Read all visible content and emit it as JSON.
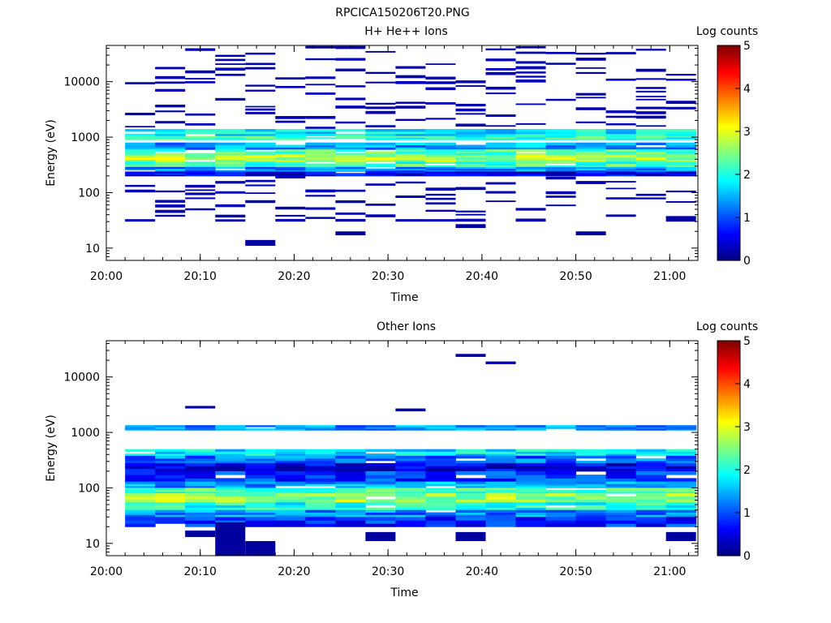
{
  "figure": {
    "title": "RPCICA150206T20.PNG"
  },
  "chart_data": [
    {
      "type": "heatmap",
      "title": "H+ He++ Ions",
      "xlabel": "Time",
      "ylabel": "Energy (eV)",
      "x_ticks": [
        "20:00",
        "20:10",
        "20:20",
        "20:30",
        "20:40",
        "20:50",
        "21:00"
      ],
      "x_range": [
        "20:00",
        "21:03"
      ],
      "y_scale": "log",
      "y_range": [
        6,
        45000
      ],
      "y_ticks": [
        "10",
        "100",
        "1000",
        "10000"
      ],
      "colorbar": {
        "label": "Log counts",
        "range": [
          0,
          5
        ],
        "ticks": [
          "0",
          "1",
          "2",
          "3",
          "4",
          "5"
        ],
        "colormap": "jet"
      },
      "time_bins_start_min": [
        2,
        5.2,
        8.4,
        11.6,
        14.8,
        18,
        21.2,
        24.4,
        27.6,
        30.8,
        34,
        37.2,
        40.4,
        43.6,
        46.8,
        50,
        53.2,
        56.4,
        59.6
      ],
      "bin_width_min": 3.2,
      "bands": [
        {
          "e": [
            1050,
            1400
          ],
          "level": 1.8
        },
        {
          "e": [
            900,
            1050
          ],
          "level": 2.1
        },
        {
          "e": [
            600,
            800
          ],
          "level": 1.4
        },
        {
          "e": [
            480,
            600
          ],
          "level": 2.3
        },
        {
          "e": [
            360,
            480
          ],
          "level": 2.7
        },
        {
          "e": [
            290,
            360
          ],
          "level": 2.2
        },
        {
          "e": [
            240,
            290
          ],
          "level": 1.3
        },
        {
          "e": [
            200,
            240
          ],
          "level": 0.5
        }
      ],
      "sparse_range": [
        30,
        40000
      ],
      "sparse_level": 0.2,
      "isolated_low": [
        {
          "bin": 4,
          "e": [
            11,
            14
          ]
        },
        {
          "bin": 7,
          "e": [
            17,
            20
          ]
        },
        {
          "bin": 11,
          "e": [
            23,
            27
          ]
        },
        {
          "bin": 15,
          "e": [
            17,
            20
          ]
        },
        {
          "bin": 18,
          "e": [
            30,
            37
          ]
        }
      ]
    },
    {
      "type": "heatmap",
      "title": "Other Ions",
      "xlabel": "Time",
      "ylabel": "Energy (eV)",
      "x_ticks": [
        "20:00",
        "20:10",
        "20:20",
        "20:30",
        "20:40",
        "20:50",
        "21:00"
      ],
      "x_range": [
        "20:00",
        "21:03"
      ],
      "y_scale": "log",
      "y_range": [
        6,
        45000
      ],
      "y_ticks": [
        "10",
        "100",
        "1000",
        "10000"
      ],
      "colorbar": {
        "label": "Log counts",
        "range": [
          0,
          5
        ],
        "ticks": [
          "0",
          "1",
          "2",
          "3",
          "4",
          "5"
        ],
        "colormap": "jet"
      },
      "time_bins_start_min": [
        2,
        5.2,
        8.4,
        11.6,
        14.8,
        18,
        21.2,
        24.4,
        27.6,
        30.8,
        34,
        37.2,
        40.4,
        43.6,
        46.8,
        50,
        53.2,
        56.4,
        59.6
      ],
      "bin_width_min": 3.2,
      "bands": [
        {
          "e": [
            1100,
            1350
          ],
          "level": 1.3
        },
        {
          "e": [
            380,
            500
          ],
          "level": 1.8
        },
        {
          "e": [
            280,
            380
          ],
          "level": 1.2
        },
        {
          "e": [
            200,
            280
          ],
          "level": 0.5
        },
        {
          "e": [
            130,
            200
          ],
          "level": 0.9
        },
        {
          "e": [
            100,
            130
          ],
          "level": 1.4
        },
        {
          "e": [
            80,
            100
          ],
          "level": 2.2
        },
        {
          "e": [
            55,
            80
          ],
          "level": 2.6
        },
        {
          "e": [
            40,
            55
          ],
          "level": 2.0
        },
        {
          "e": [
            30,
            40
          ],
          "level": 1.3
        },
        {
          "e": [
            20,
            30
          ],
          "level": 0.8
        }
      ],
      "isolated_high": [
        {
          "bin": 11,
          "e": [
            23000,
            26000
          ]
        },
        {
          "bin": 12,
          "e": [
            17000,
            19000
          ]
        },
        {
          "bin": 9,
          "e": [
            2400,
            2700
          ]
        },
        {
          "bin": 2,
          "e": [
            2700,
            3000
          ]
        }
      ],
      "isolated_low": [
        {
          "bin": 3,
          "e": [
            6,
            24
          ]
        },
        {
          "bin": 4,
          "e": [
            6,
            11
          ]
        },
        {
          "bin": 2,
          "e": [
            13,
            17
          ]
        },
        {
          "bin": 8,
          "e": [
            11,
            16
          ]
        },
        {
          "bin": 11,
          "e": [
            11,
            16
          ]
        },
        {
          "bin": 18,
          "e": [
            11,
            16
          ]
        }
      ]
    }
  ]
}
